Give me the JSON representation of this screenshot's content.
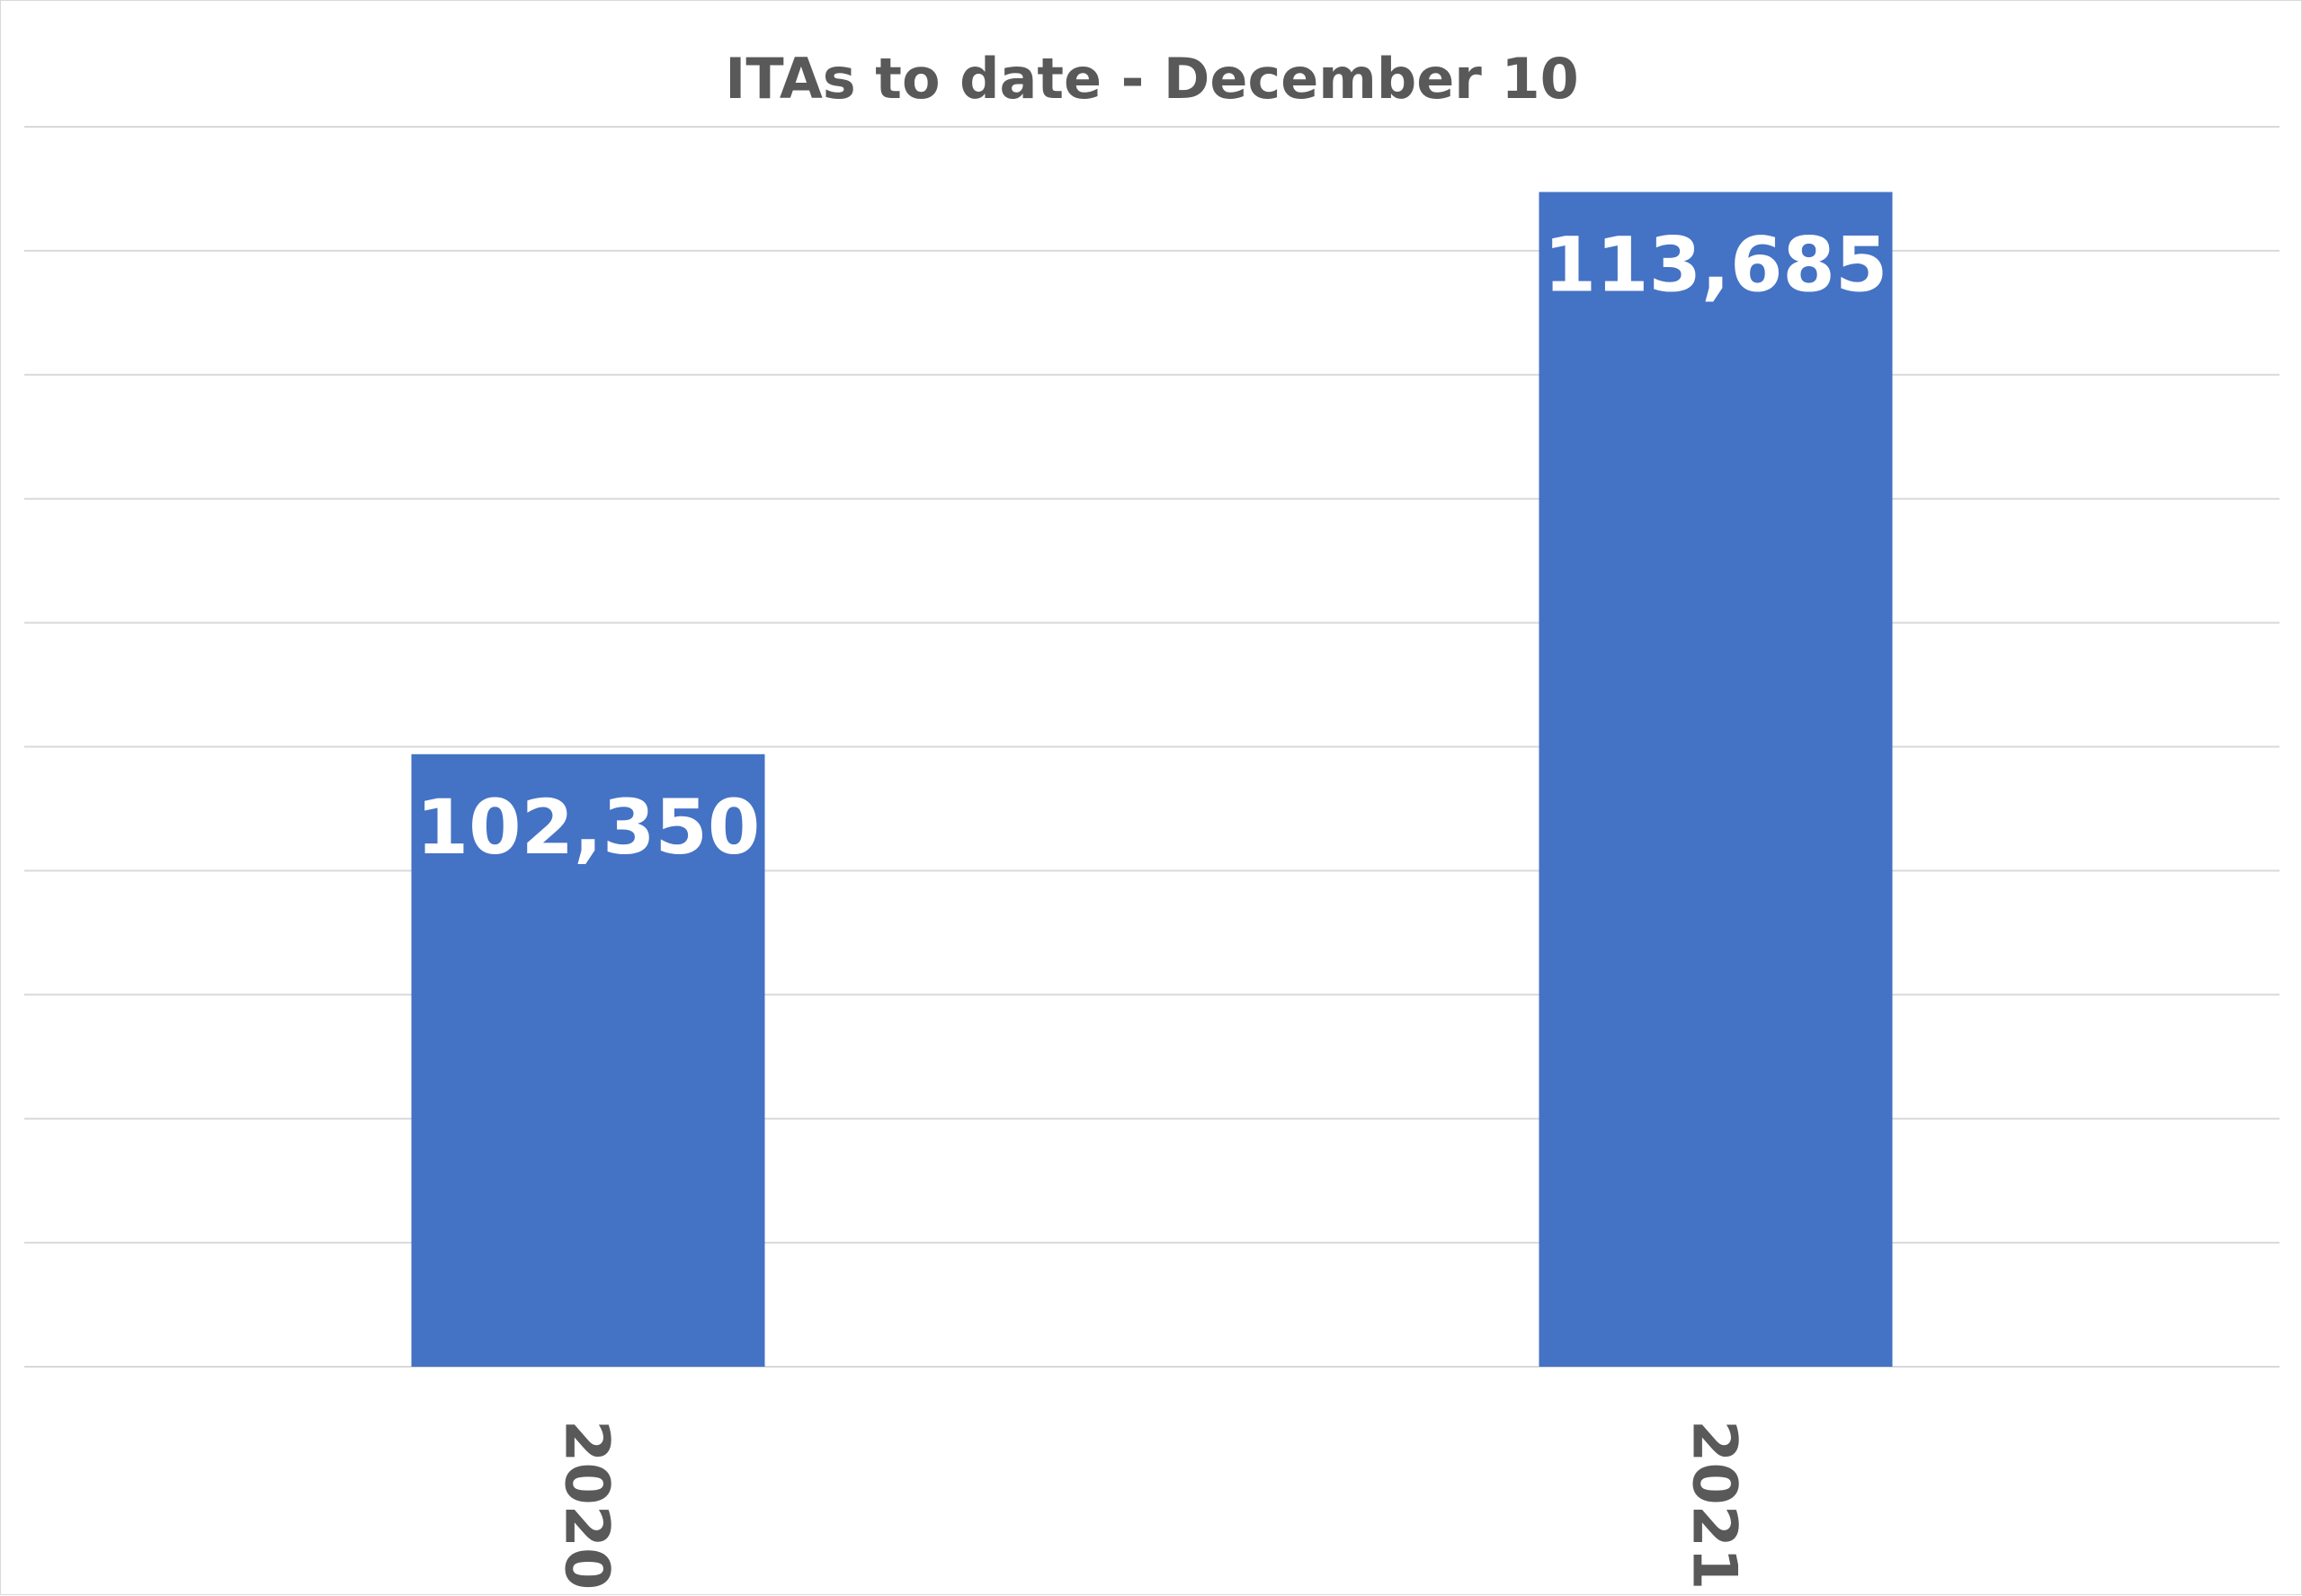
{
  "chart_data": {
    "type": "bar",
    "title": "ITAs to date - December 10",
    "categories": [
      "2020",
      "2021"
    ],
    "values": [
      102350,
      113685
    ],
    "value_labels": [
      "102,350",
      "113,685"
    ],
    "xlabel": "",
    "ylabel": "",
    "ylim": [
      90000,
      115000
    ],
    "y_gridline_step": 2500,
    "y_axis_tick_labels_visible": false,
    "category_label_orientation": "rotated-90-clockwise",
    "grid": true,
    "legend": "none",
    "bar_color": "#4472C4",
    "gridline_color": "#D9D9D9",
    "text_color": "#595959"
  }
}
